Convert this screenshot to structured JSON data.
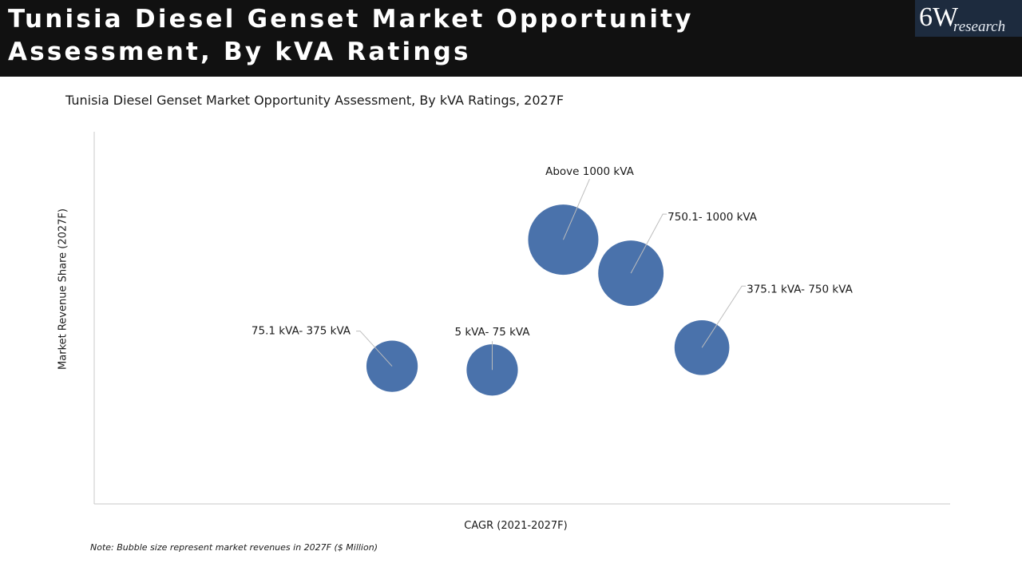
{
  "header": {
    "title": "Tunisia Diesel Genset Market Opportunity Assessment, By kVA Ratings",
    "logo_main": "6W",
    "logo_sub": "research"
  },
  "chart_data": {
    "type": "scatter",
    "title": "Tunisia Diesel Genset Market Opportunity Assessment, By kVA Ratings, 2027F",
    "xlabel": "CAGR (2021-2027F)",
    "ylabel": "Market Revenue Share (2027F)",
    "note": "Note: Bubble size represent market revenues in 2027F ($ Million)",
    "axes": {
      "ticks_shown": false,
      "grid": false
    },
    "bubble_color": "#4a72ab",
    "series": [
      {
        "name": "75.1 kVA- 375 kVA",
        "x": 0.348,
        "y": 0.37,
        "size": 0.73
      },
      {
        "name": "5 kVA- 75 kVA",
        "x": 0.465,
        "y": 0.36,
        "size": 0.73
      },
      {
        "name": "Above 1000 kVA",
        "x": 0.548,
        "y": 0.71,
        "size": 1.0
      },
      {
        "name": "750.1- 1000 kVA",
        "x": 0.627,
        "y": 0.62,
        "size": 0.93
      },
      {
        "name": "375.1 kVA- 750 kVA",
        "x": 0.71,
        "y": 0.42,
        "size": 0.78
      }
    ]
  }
}
